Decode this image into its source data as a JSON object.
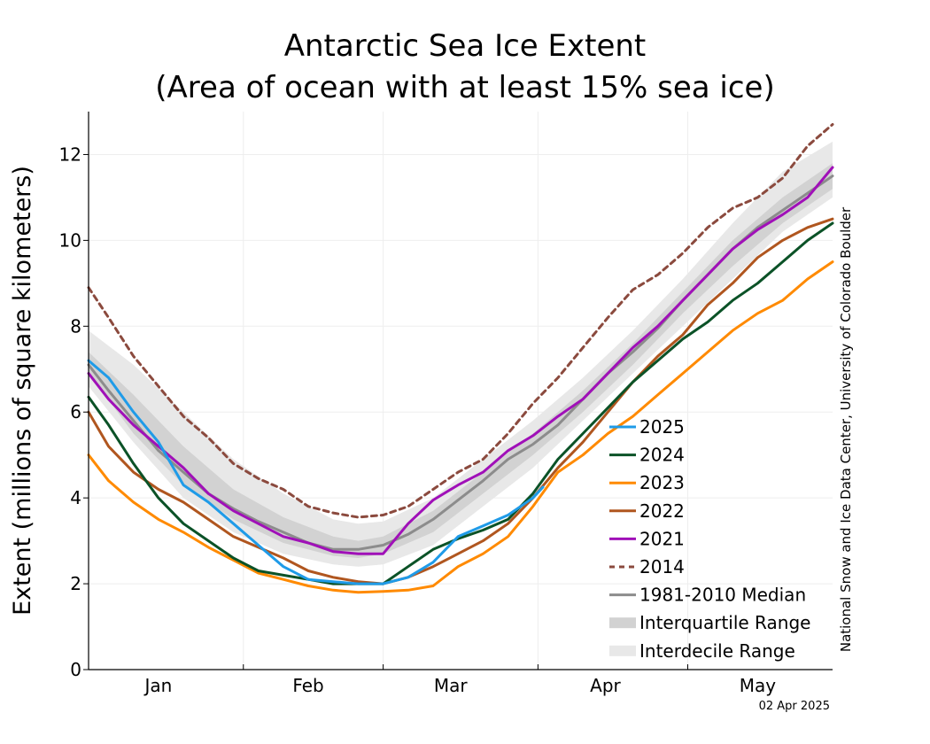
{
  "chart_data": {
    "type": "line",
    "title_line1": "Antarctic Sea Ice Extent",
    "title_line2": "(Area of ocean with at least 15% sea ice)",
    "ylabel": "Extent (millions of square kilometers)",
    "xlabel": "",
    "ylim": [
      0,
      13
    ],
    "yticks": [
      0,
      2,
      4,
      6,
      8,
      10,
      12
    ],
    "xlim": [
      1,
      150
    ],
    "month_labels": [
      {
        "label": "Jan",
        "day": 15
      },
      {
        "label": "Feb",
        "day": 45
      },
      {
        "label": "Mar",
        "day": 73.5
      },
      {
        "label": "Apr",
        "day": 104.5
      },
      {
        "label": "May",
        "day": 135
      }
    ],
    "month_boundaries": [
      32,
      60,
      91,
      121
    ],
    "grid": true,
    "legend_position": "lower-right",
    "date": "02 Apr 2025",
    "credit": "National Snow and Ice Data Center, University of Colorado Boulder",
    "colors": {
      "2025": "#1f9be8",
      "2024": "#0b5227",
      "2023": "#ff8a00",
      "2022": "#b0561f",
      "2021": "#a010b8",
      "2014": "#8b4a3e",
      "median": "#8c8c8c",
      "iqr": "#d2d2d2",
      "idr": "#e8e8e8"
    },
    "series": [
      {
        "name": "2025",
        "key": "2025",
        "dash": false,
        "x": [
          1,
          5,
          10,
          15,
          20,
          25,
          30,
          35,
          40,
          45,
          50,
          55,
          60,
          65,
          70,
          75,
          80,
          85,
          90,
          92
        ],
        "y": [
          7.2,
          6.8,
          6.0,
          5.3,
          4.3,
          3.9,
          3.4,
          2.9,
          2.4,
          2.1,
          2.05,
          2.0,
          2.0,
          2.15,
          2.5,
          3.1,
          3.35,
          3.6,
          4.0,
          4.25
        ]
      },
      {
        "name": "2024",
        "key": "2024",
        "dash": false,
        "x": [
          1,
          5,
          10,
          15,
          20,
          25,
          30,
          35,
          40,
          45,
          50,
          55,
          60,
          65,
          70,
          75,
          80,
          85,
          90,
          95,
          100,
          105,
          110,
          115,
          120,
          125,
          130,
          135,
          140,
          145,
          150
        ],
        "y": [
          6.35,
          5.7,
          4.8,
          4.0,
          3.4,
          3.0,
          2.6,
          2.3,
          2.2,
          2.1,
          2.0,
          2.0,
          2.0,
          2.4,
          2.8,
          3.05,
          3.25,
          3.5,
          4.1,
          4.9,
          5.5,
          6.1,
          6.7,
          7.2,
          7.7,
          8.1,
          8.6,
          9.0,
          9.5,
          10.0,
          10.4
        ]
      },
      {
        "name": "2023",
        "key": "2023",
        "dash": false,
        "x": [
          1,
          5,
          10,
          15,
          20,
          25,
          30,
          35,
          40,
          45,
          50,
          55,
          60,
          65,
          70,
          75,
          80,
          85,
          90,
          95,
          100,
          105,
          110,
          115,
          120,
          125,
          130,
          135,
          140,
          145,
          150
        ],
        "y": [
          5.0,
          4.4,
          3.9,
          3.5,
          3.2,
          2.85,
          2.55,
          2.25,
          2.1,
          1.95,
          1.85,
          1.8,
          1.82,
          1.85,
          1.95,
          2.4,
          2.7,
          3.1,
          3.8,
          4.6,
          5.0,
          5.5,
          5.9,
          6.4,
          6.9,
          7.4,
          7.9,
          8.3,
          8.6,
          9.1,
          9.5
        ]
      },
      {
        "name": "2022",
        "key": "2022",
        "dash": false,
        "x": [
          1,
          5,
          10,
          15,
          20,
          25,
          30,
          35,
          40,
          45,
          50,
          55,
          60,
          65,
          70,
          75,
          80,
          85,
          90,
          95,
          100,
          105,
          110,
          115,
          120,
          125,
          130,
          135,
          140,
          145,
          150
        ],
        "y": [
          6.0,
          5.2,
          4.6,
          4.2,
          3.9,
          3.5,
          3.1,
          2.85,
          2.6,
          2.3,
          2.15,
          2.05,
          2.0,
          2.15,
          2.4,
          2.7,
          3.0,
          3.4,
          4.0,
          4.7,
          5.3,
          6.0,
          6.7,
          7.3,
          7.8,
          8.5,
          9.0,
          9.6,
          10.0,
          10.3,
          10.5
        ]
      },
      {
        "name": "2021",
        "key": "2021",
        "dash": false,
        "x": [
          1,
          5,
          10,
          15,
          20,
          25,
          30,
          35,
          40,
          45,
          50,
          55,
          60,
          65,
          70,
          75,
          80,
          85,
          90,
          95,
          100,
          105,
          110,
          115,
          120,
          125,
          130,
          135,
          140,
          145,
          150
        ],
        "y": [
          6.9,
          6.3,
          5.7,
          5.2,
          4.7,
          4.1,
          3.7,
          3.4,
          3.1,
          2.95,
          2.75,
          2.7,
          2.7,
          3.4,
          3.95,
          4.3,
          4.6,
          5.1,
          5.45,
          5.9,
          6.3,
          6.9,
          7.5,
          8.0,
          8.6,
          9.2,
          9.8,
          10.25,
          10.6,
          11.0,
          11.7
        ]
      },
      {
        "name": "2014",
        "key": "2014",
        "dash": true,
        "x": [
          1,
          5,
          10,
          15,
          20,
          25,
          30,
          35,
          40,
          45,
          50,
          55,
          60,
          65,
          70,
          75,
          80,
          85,
          90,
          95,
          100,
          105,
          110,
          115,
          120,
          125,
          130,
          135,
          140,
          145,
          150
        ],
        "y": [
          8.9,
          8.2,
          7.3,
          6.6,
          5.9,
          5.4,
          4.8,
          4.45,
          4.2,
          3.8,
          3.65,
          3.55,
          3.6,
          3.8,
          4.2,
          4.6,
          4.9,
          5.5,
          6.2,
          6.8,
          7.5,
          8.2,
          8.85,
          9.2,
          9.7,
          10.3,
          10.75,
          11.0,
          11.45,
          12.2,
          12.7
        ]
      },
      {
        "name": "1981-2010 Median",
        "key": "median",
        "dash": false,
        "x": [
          1,
          5,
          10,
          15,
          20,
          25,
          30,
          35,
          40,
          45,
          50,
          55,
          60,
          65,
          70,
          75,
          80,
          85,
          90,
          95,
          100,
          105,
          110,
          115,
          120,
          125,
          130,
          135,
          140,
          145,
          150
        ],
        "y": [
          7.1,
          6.5,
          5.8,
          5.1,
          4.6,
          4.1,
          3.75,
          3.45,
          3.2,
          2.95,
          2.8,
          2.8,
          2.9,
          3.15,
          3.5,
          3.95,
          4.4,
          4.9,
          5.25,
          5.7,
          6.3,
          6.9,
          7.4,
          7.95,
          8.6,
          9.2,
          9.8,
          10.3,
          10.7,
          11.1,
          11.5
        ]
      }
    ],
    "bands": [
      {
        "name": "Interdecile Range",
        "key": "idr",
        "x": [
          1,
          10,
          20,
          30,
          40,
          50,
          55,
          60,
          70,
          80,
          90,
          100,
          110,
          120,
          130,
          140,
          150
        ],
        "lower": [
          6.6,
          5.3,
          4.0,
          3.2,
          2.7,
          2.45,
          2.4,
          2.45,
          2.9,
          3.8,
          4.7,
          5.8,
          6.9,
          8.0,
          9.1,
          10.2,
          11.0
        ],
        "upper": [
          7.9,
          7.1,
          6.0,
          4.9,
          4.1,
          3.5,
          3.4,
          3.45,
          4.0,
          4.9,
          5.8,
          6.8,
          7.9,
          9.1,
          10.4,
          11.6,
          12.3
        ]
      },
      {
        "name": "Interquartile Range",
        "key": "iqr",
        "x": [
          1,
          10,
          20,
          30,
          40,
          50,
          55,
          60,
          70,
          80,
          90,
          100,
          110,
          120,
          130,
          140,
          150
        ],
        "lower": [
          6.9,
          5.5,
          4.3,
          3.5,
          2.95,
          2.65,
          2.6,
          2.7,
          3.2,
          4.1,
          5.0,
          6.0,
          7.1,
          8.3,
          9.4,
          10.4,
          11.2
        ],
        "upper": [
          7.4,
          6.4,
          5.2,
          4.2,
          3.55,
          3.1,
          3.0,
          3.1,
          3.7,
          4.6,
          5.5,
          6.5,
          7.6,
          8.8,
          10.0,
          11.0,
          11.8
        ]
      }
    ],
    "legend": [
      {
        "label": "2025",
        "key": "2025",
        "kind": "line"
      },
      {
        "label": "2024",
        "key": "2024",
        "kind": "line"
      },
      {
        "label": "2023",
        "key": "2023",
        "kind": "line"
      },
      {
        "label": "2022",
        "key": "2022",
        "kind": "line"
      },
      {
        "label": "2021",
        "key": "2021",
        "kind": "line"
      },
      {
        "label": "2014",
        "key": "2014",
        "kind": "dashed"
      },
      {
        "label": "1981-2010 Median",
        "key": "median",
        "kind": "line"
      },
      {
        "label": "Interquartile Range",
        "key": "iqr",
        "kind": "band"
      },
      {
        "label": "Interdecile Range",
        "key": "idr",
        "kind": "band"
      }
    ]
  }
}
